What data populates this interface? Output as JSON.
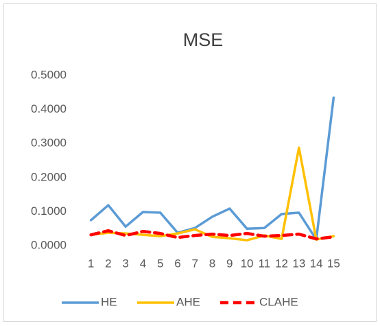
{
  "chart_data": {
    "type": "line",
    "title": "MSE",
    "categories": [
      "1",
      "2",
      "3",
      "4",
      "5",
      "6",
      "7",
      "8",
      "9",
      "10",
      "11",
      "12",
      "13",
      "14",
      "15"
    ],
    "ylim": [
      0,
      0.5
    ],
    "yticks": [
      {
        "value": 0,
        "label": "0.0000"
      },
      {
        "value": 0.1,
        "label": "0.1000"
      },
      {
        "value": 0.2,
        "label": "0.2000"
      },
      {
        "value": 0.3,
        "label": "0.3000"
      },
      {
        "value": 0.4,
        "label": "0.4000"
      },
      {
        "value": 0.5,
        "label": "0.5000"
      }
    ],
    "legend": "bottom",
    "series": [
      {
        "name": "HE",
        "color": "#5b9bd5",
        "line_style": "solid",
        "values": [
          0.075,
          0.119,
          0.056,
          0.099,
          0.097,
          0.038,
          0.052,
          0.085,
          0.109,
          0.05,
          0.052,
          0.093,
          0.097,
          0.018,
          0.435
        ]
      },
      {
        "name": "AHE",
        "color": "#ffc000",
        "line_style": "solid",
        "values": [
          0.032,
          0.038,
          0.036,
          0.032,
          0.028,
          0.036,
          0.048,
          0.026,
          0.022,
          0.016,
          0.03,
          0.02,
          0.288,
          0.018,
          0.028
        ]
      },
      {
        "name": "CLAHE",
        "color": "#ff0000",
        "line_style": "dashed",
        "values": [
          0.032,
          0.044,
          0.03,
          0.042,
          0.036,
          0.024,
          0.03,
          0.034,
          0.03,
          0.036,
          0.028,
          0.03,
          0.034,
          0.02,
          0.026
        ]
      }
    ]
  }
}
